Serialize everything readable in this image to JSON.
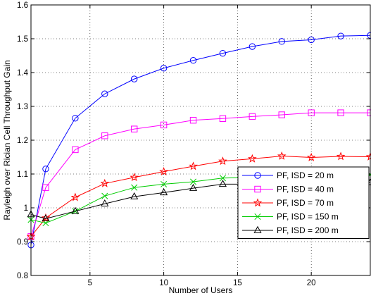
{
  "chart_data": {
    "type": "line",
    "xlabel": "Number of Users",
    "ylabel": "Rayleigh over Rician Cell Throughput Gain",
    "xlim": [
      1,
      24
    ],
    "ylim": [
      0.8,
      1.6
    ],
    "xticks": [
      5,
      10,
      15,
      20
    ],
    "yticks": [
      0.8,
      0.9,
      1,
      1.1,
      1.2,
      1.3,
      1.4,
      1.5,
      1.6
    ],
    "xtick_labels": [
      "5",
      "10",
      "15",
      "20"
    ],
    "ytick_labels": [
      "0.8",
      "0.9",
      "1",
      "1.1",
      "1.2",
      "1.3",
      "1.4",
      "1.5",
      "1.6"
    ],
    "grid": true,
    "legend_position": "lower-right",
    "x": [
      1,
      2,
      4,
      6,
      8,
      10,
      12,
      14,
      16,
      18,
      20,
      22,
      24
    ],
    "series": [
      {
        "name": "PF, ISD = 20 m",
        "color": "#0000ff",
        "marker": "circle",
        "values": [
          0.89,
          1.115,
          1.265,
          1.337,
          1.381,
          1.413,
          1.436,
          1.457,
          1.477,
          1.492,
          1.497,
          1.508,
          1.51
        ]
      },
      {
        "name": "PF, ISD = 40 m",
        "color": "#ff00ff",
        "marker": "square",
        "values": [
          0.915,
          1.06,
          1.172,
          1.213,
          1.233,
          1.245,
          1.259,
          1.264,
          1.27,
          1.275,
          1.281,
          1.281,
          1.281
        ]
      },
      {
        "name": "PF, ISD = 70 m",
        "color": "#ff0000",
        "marker": "star",
        "values": [
          0.915,
          0.97,
          1.031,
          1.072,
          1.09,
          1.107,
          1.123,
          1.138,
          1.145,
          1.153,
          1.149,
          1.152,
          1.151
        ]
      },
      {
        "name": "PF, ISD = 150 m",
        "color": "#00cc00",
        "marker": "x",
        "values": [
          0.965,
          0.955,
          0.99,
          1.035,
          1.06,
          1.07,
          1.077,
          1.088,
          1.09,
          1.097,
          1.098,
          1.098,
          1.098
        ]
      },
      {
        "name": "PF, ISD = 200 m",
        "color": "#000000",
        "marker": "triangle",
        "values": [
          0.98,
          0.968,
          0.99,
          1.012,
          1.033,
          1.045,
          1.058,
          1.07,
          1.07,
          1.075,
          1.075,
          1.073,
          1.075
        ]
      }
    ]
  }
}
